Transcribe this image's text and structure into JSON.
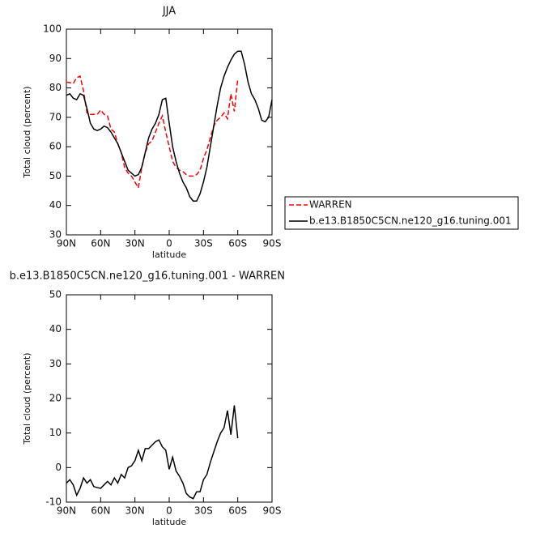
{
  "chart_data": [
    {
      "type": "line",
      "title": "JJA",
      "x_label": "latitude",
      "y_label": "Total cloud (percent)",
      "x": [
        90,
        87,
        84,
        81,
        78,
        75,
        72,
        69,
        66,
        63,
        60,
        57,
        54,
        51,
        48,
        45,
        42,
        39,
        36,
        33,
        30,
        27,
        24,
        21,
        18,
        15,
        12,
        9,
        6,
        3,
        0,
        -3,
        -6,
        -9,
        -12,
        -15,
        -18,
        -21,
        -24,
        -27,
        -30,
        -33,
        -36,
        -39,
        -42,
        -45,
        -48,
        -51,
        -54,
        -57,
        -60,
        -63,
        -66,
        -69,
        -72,
        -75,
        -78,
        -81,
        -84,
        -87,
        -90
      ],
      "xlim": [
        90,
        -90
      ],
      "xticks": [
        {
          "value": 90,
          "label": "90N"
        },
        {
          "value": 60,
          "label": "60N"
        },
        {
          "value": 30,
          "label": "30N"
        },
        0,
        {
          "value": -30,
          "label": "30S"
        },
        {
          "value": -60,
          "label": "60S"
        },
        {
          "value": -90,
          "label": "90S"
        }
      ],
      "ylim": [
        30,
        100
      ],
      "yticks": [
        30,
        40,
        50,
        60,
        70,
        80,
        90,
        100
      ],
      "legend": "right",
      "series": [
        {
          "name": "WARREN",
          "color": "#ff0000",
          "dash": "dashed",
          "values": [
            82,
            81.8,
            81.5,
            83.5,
            84,
            79,
            71.5,
            71,
            71,
            71,
            72.5,
            71,
            70.5,
            66,
            65,
            61,
            58,
            53,
            51,
            50,
            48,
            46,
            53,
            58,
            61,
            62,
            65,
            68,
            70.5,
            65,
            60,
            55,
            53,
            52,
            51.5,
            50.5,
            50,
            50,
            50.5,
            52,
            56,
            59,
            63,
            67,
            69,
            70,
            71.5,
            69.5,
            78,
            72,
            83,
            null,
            null,
            null,
            null,
            null,
            null,
            null,
            null,
            null,
            null
          ]
        },
        {
          "name": "b.e13.B1850C5CN.ne120_g16.tuning.001",
          "color": "#000000",
          "dash": "solid",
          "values": [
            77.5,
            78,
            76.5,
            76,
            78,
            77.5,
            73,
            68,
            66,
            65.5,
            66,
            67,
            66.5,
            65,
            63,
            61,
            58,
            55,
            52,
            51,
            50,
            50.5,
            53,
            58,
            63,
            66,
            68,
            71,
            76,
            76.5,
            68,
            60,
            55,
            51,
            48,
            46,
            43,
            41.5,
            41.5,
            44,
            48,
            53,
            60,
            67,
            74,
            80,
            84,
            87,
            89.5,
            91.5,
            92.5,
            92.5,
            88,
            82,
            78,
            76,
            73,
            69,
            68.5,
            70,
            76
          ]
        }
      ]
    },
    {
      "type": "line",
      "title": "b.e13.B1850C5CN.ne120_g16.tuning.001 - WARREN",
      "x_label": "latitude",
      "y_label": "Total cloud (percent)",
      "x": [
        90,
        87,
        84,
        81,
        78,
        75,
        72,
        69,
        66,
        63,
        60,
        57,
        54,
        51,
        48,
        45,
        42,
        39,
        36,
        33,
        30,
        27,
        24,
        21,
        18,
        15,
        12,
        9,
        6,
        3,
        0,
        -3,
        -6,
        -9,
        -12,
        -15,
        -18,
        -21,
        -24,
        -27,
        -30,
        -33,
        -36,
        -39,
        -42,
        -45,
        -48,
        -51,
        -54,
        -57,
        -60,
        -63,
        -66,
        -69,
        -72,
        -75,
        -78,
        -81,
        -84,
        -87,
        -90
      ],
      "xlim": [
        90,
        -90
      ],
      "xticks": [
        {
          "value": 90,
          "label": "90N"
        },
        {
          "value": 60,
          "label": "60N"
        },
        {
          "value": 30,
          "label": "30N"
        },
        0,
        {
          "value": -30,
          "label": "30S"
        },
        {
          "value": -60,
          "label": "60S"
        },
        {
          "value": -90,
          "label": "90S"
        }
      ],
      "ylim": [
        -10,
        50
      ],
      "yticks": [
        -10,
        0,
        10,
        20,
        30,
        40,
        50
      ],
      "series": [
        {
          "color": "#000000",
          "dash": "solid",
          "values": [
            -4.5,
            -3.5,
            -5,
            -8,
            -6,
            -3,
            -4.5,
            -3.5,
            -5.5,
            -5.8,
            -6,
            -5,
            -4,
            -5,
            -3,
            -4.5,
            -2,
            -3,
            0,
            0.5,
            2,
            5,
            2,
            5.5,
            5.5,
            6.5,
            7.5,
            8,
            6,
            5,
            -0.5,
            3,
            -1,
            -2.5,
            -4.5,
            -7.5,
            -8.5,
            -9,
            -7,
            -7,
            -3.5,
            -2,
            1.5,
            4.5,
            7.5,
            10,
            11.5,
            16.5,
            9.5,
            18,
            8.5,
            null,
            null,
            null,
            null,
            null,
            null,
            null,
            null,
            null,
            null
          ]
        }
      ]
    }
  ]
}
